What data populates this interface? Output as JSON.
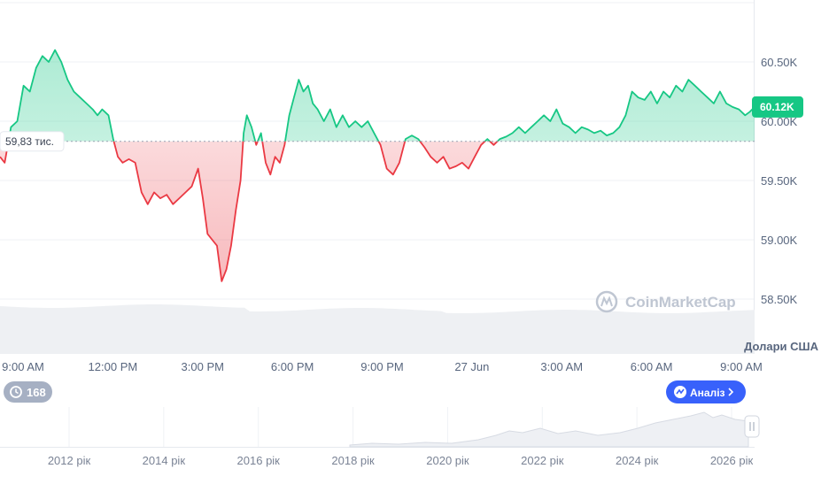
{
  "chart_data": {
    "type": "area",
    "baseline": 59830,
    "baseline_label": "59,83 тис.",
    "current_price_label": "60.12K",
    "currency_label": "Долари США",
    "watermark": "CoinMarketCap",
    "ylim": [
      58300,
      61050
    ],
    "y_ticks": [
      {
        "value": 60500,
        "label": "60.50K"
      },
      {
        "value": 60000,
        "label": "60.00K"
      },
      {
        "value": 59500,
        "label": "59.50K"
      },
      {
        "value": 59000,
        "label": "59.00K"
      },
      {
        "value": 58500,
        "label": "58.50K"
      }
    ],
    "x_ticks": [
      "9:00 AM",
      "12:00 PM",
      "3:00 PM",
      "6:00 PM",
      "9:00 PM",
      "27 Jun",
      "3:00 AM",
      "6:00 AM",
      "9:00 AM"
    ],
    "xlim_hours": [
      0,
      24
    ],
    "series": [
      {
        "values": [
          [
            0.0,
            59700
          ],
          [
            0.15,
            59650
          ],
          [
            0.35,
            59950
          ],
          [
            0.55,
            60000
          ],
          [
            0.75,
            60300
          ],
          [
            0.95,
            60250
          ],
          [
            1.15,
            60450
          ],
          [
            1.35,
            60550
          ],
          [
            1.55,
            60500
          ],
          [
            1.75,
            60600
          ],
          [
            1.95,
            60500
          ],
          [
            2.15,
            60350
          ],
          [
            2.35,
            60250
          ],
          [
            2.55,
            60200
          ],
          [
            2.75,
            60150
          ],
          [
            2.95,
            60100
          ],
          [
            3.1,
            60050
          ],
          [
            3.25,
            60100
          ],
          [
            3.45,
            60050
          ],
          [
            3.6,
            59850
          ],
          [
            3.75,
            59700
          ],
          [
            3.9,
            59650
          ],
          [
            4.1,
            59680
          ],
          [
            4.3,
            59650
          ],
          [
            4.5,
            59400
          ],
          [
            4.7,
            59300
          ],
          [
            4.9,
            59400
          ],
          [
            5.1,
            59350
          ],
          [
            5.3,
            59380
          ],
          [
            5.5,
            59300
          ],
          [
            5.7,
            59350
          ],
          [
            5.9,
            59400
          ],
          [
            6.1,
            59450
          ],
          [
            6.3,
            59600
          ],
          [
            6.45,
            59350
          ],
          [
            6.6,
            59050
          ],
          [
            6.75,
            59000
          ],
          [
            6.9,
            58950
          ],
          [
            7.05,
            58650
          ],
          [
            7.2,
            58750
          ],
          [
            7.35,
            58950
          ],
          [
            7.5,
            59250
          ],
          [
            7.65,
            59500
          ],
          [
            7.75,
            59900
          ],
          [
            7.85,
            60050
          ],
          [
            8.0,
            59950
          ],
          [
            8.15,
            59800
          ],
          [
            8.3,
            59900
          ],
          [
            8.45,
            59650
          ],
          [
            8.6,
            59550
          ],
          [
            8.75,
            59700
          ],
          [
            8.9,
            59650
          ],
          [
            9.05,
            59800
          ],
          [
            9.2,
            60050
          ],
          [
            9.35,
            60200
          ],
          [
            9.5,
            60350
          ],
          [
            9.65,
            60250
          ],
          [
            9.8,
            60300
          ],
          [
            9.95,
            60150
          ],
          [
            10.1,
            60100
          ],
          [
            10.3,
            60000
          ],
          [
            10.5,
            60100
          ],
          [
            10.7,
            59950
          ],
          [
            10.9,
            60050
          ],
          [
            11.1,
            59950
          ],
          [
            11.3,
            60000
          ],
          [
            11.5,
            59950
          ],
          [
            11.7,
            60000
          ],
          [
            11.9,
            59900
          ],
          [
            12.1,
            59800
          ],
          [
            12.3,
            59600
          ],
          [
            12.5,
            59550
          ],
          [
            12.7,
            59650
          ],
          [
            12.9,
            59850
          ],
          [
            13.1,
            59880
          ],
          [
            13.3,
            59850
          ],
          [
            13.5,
            59780
          ],
          [
            13.7,
            59700
          ],
          [
            13.9,
            59650
          ],
          [
            14.1,
            59700
          ],
          [
            14.3,
            59600
          ],
          [
            14.5,
            59620
          ],
          [
            14.7,
            59650
          ],
          [
            14.9,
            59600
          ],
          [
            15.1,
            59700
          ],
          [
            15.3,
            59800
          ],
          [
            15.5,
            59850
          ],
          [
            15.7,
            59800
          ],
          [
            15.9,
            59850
          ],
          [
            16.1,
            59870
          ],
          [
            16.3,
            59900
          ],
          [
            16.5,
            59950
          ],
          [
            16.7,
            59900
          ],
          [
            16.9,
            59950
          ],
          [
            17.1,
            60000
          ],
          [
            17.3,
            60050
          ],
          [
            17.5,
            60000
          ],
          [
            17.7,
            60100
          ],
          [
            17.9,
            59980
          ],
          [
            18.1,
            59950
          ],
          [
            18.3,
            59900
          ],
          [
            18.5,
            59950
          ],
          [
            18.7,
            59930
          ],
          [
            18.9,
            59900
          ],
          [
            19.1,
            59920
          ],
          [
            19.3,
            59880
          ],
          [
            19.5,
            59900
          ],
          [
            19.7,
            59950
          ],
          [
            19.9,
            60050
          ],
          [
            20.1,
            60250
          ],
          [
            20.3,
            60200
          ],
          [
            20.5,
            60180
          ],
          [
            20.7,
            60250
          ],
          [
            20.9,
            60150
          ],
          [
            21.1,
            60250
          ],
          [
            21.3,
            60200
          ],
          [
            21.5,
            60300
          ],
          [
            21.7,
            60250
          ],
          [
            21.9,
            60350
          ],
          [
            22.1,
            60300
          ],
          [
            22.3,
            60250
          ],
          [
            22.5,
            60200
          ],
          [
            22.7,
            60150
          ],
          [
            22.9,
            60250
          ],
          [
            23.1,
            60150
          ],
          [
            23.3,
            60120
          ],
          [
            23.5,
            60100
          ],
          [
            23.7,
            60050
          ],
          [
            23.85,
            60080
          ],
          [
            24.0,
            60120
          ]
        ]
      }
    ],
    "volume_hint": "shaded volume band below main chart",
    "navigator": {
      "x_ticks": [
        "2012 рік",
        "2014 рік",
        "2016 рік",
        "2018 рік",
        "2020 рік",
        "2022 рік",
        "2024 рік",
        "2026 рік"
      ],
      "history_badge": "168",
      "analysis_button": "Аналіз"
    },
    "colors": {
      "up": "#16c784",
      "down": "#ea3943",
      "up_fill": "#16c784",
      "down_fill": "#ea3943",
      "badge_green": "#16c784",
      "analysis_blue": "#3861fb",
      "history_gray": "#a6b0c3"
    }
  }
}
